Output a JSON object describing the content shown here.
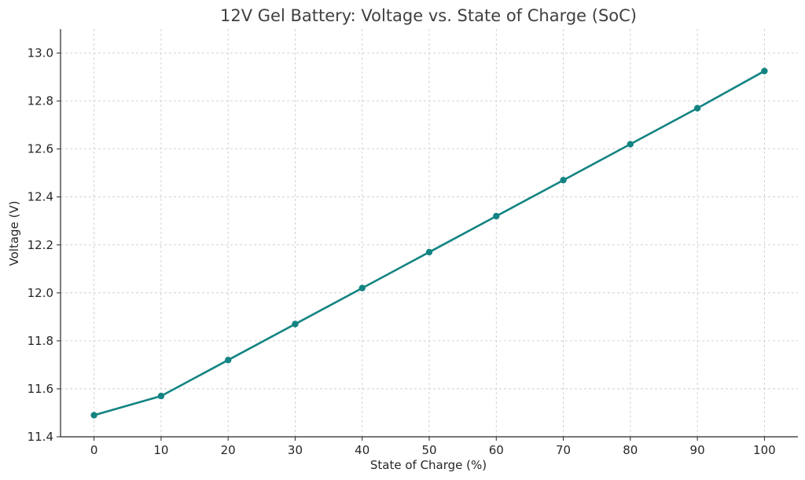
{
  "chart_data": {
    "type": "line",
    "title": "12V Gel Battery: Voltage vs. State of Charge (SoC)",
    "xlabel": "State of Charge (%)",
    "ylabel": "Voltage (V)",
    "x": [
      0,
      10,
      20,
      30,
      40,
      50,
      60,
      70,
      80,
      90,
      100
    ],
    "series": [
      {
        "values": [
          11.49,
          11.57,
          11.72,
          11.87,
          12.02,
          12.17,
          12.32,
          12.47,
          12.62,
          12.77,
          12.925
        ],
        "color": "#138483"
      }
    ],
    "xlim": [
      -5,
      105
    ],
    "ylim": [
      11.4,
      13.1
    ],
    "xticks": [
      "0",
      "10",
      "20",
      "30",
      "40",
      "50",
      "60",
      "70",
      "80",
      "90",
      "100"
    ],
    "yticks": [
      "11.4",
      "11.6",
      "11.8",
      "12.0",
      "12.2",
      "12.4",
      "12.6",
      "12.8",
      "13.0"
    ],
    "grid": true
  }
}
